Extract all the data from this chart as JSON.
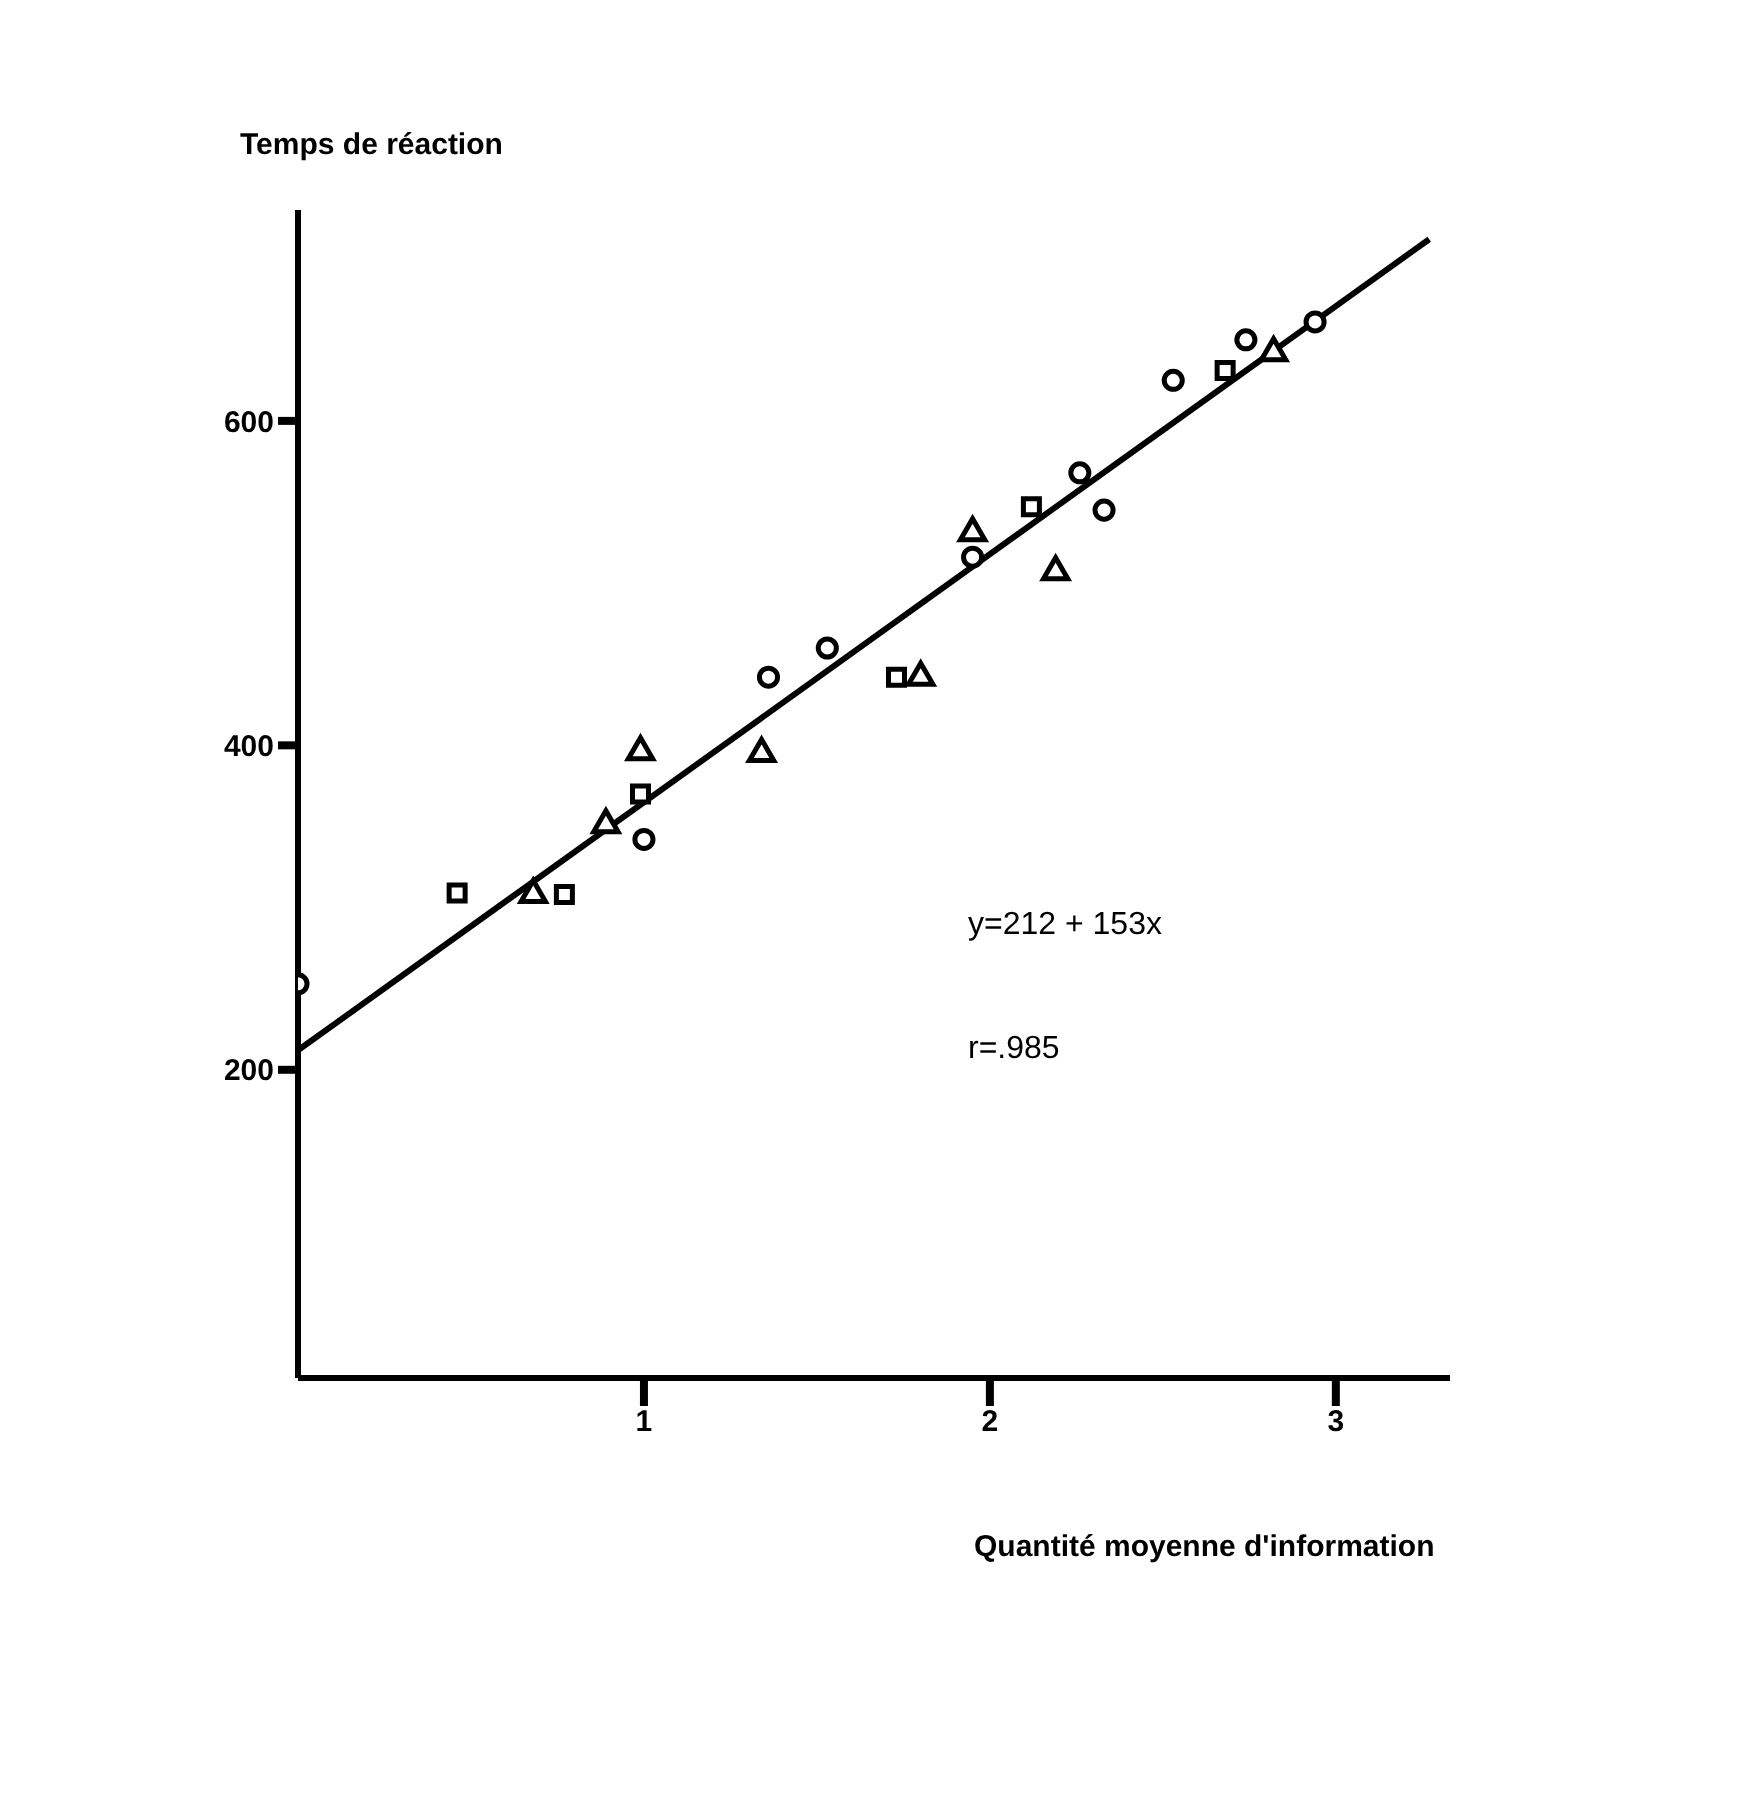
{
  "chart_data": {
    "type": "scatter",
    "xlabel": "Quantité moyenne d'information",
    "ylabel": "Temps de réaction",
    "annotations": [
      "y=212 + 153x",
      "r=.985"
    ],
    "xlim": [
      0,
      3.33
    ],
    "ylim": [
      10,
      730
    ],
    "xticks": [
      1,
      2,
      3
    ],
    "yticks": [
      200,
      400,
      600
    ],
    "grid": false,
    "legend": false,
    "series": [
      {
        "marker": "circle",
        "color": "#000000",
        "x": [
          0,
          1.0,
          1.36,
          1.53,
          1.95,
          2.26,
          2.33,
          2.53,
          2.74,
          2.94
        ],
        "values": [
          253,
          342,
          442,
          460,
          516,
          568,
          545,
          625,
          650,
          661
        ]
      },
      {
        "marker": "square",
        "color": "#000000",
        "x": [
          0.46,
          0.77,
          0.99,
          1.73,
          2.12,
          2.68
        ],
        "values": [
          309,
          308,
          370,
          442,
          547,
          631
        ]
      },
      {
        "marker": "triangle",
        "color": "#000000",
        "x": [
          0.68,
          0.89,
          0.99,
          1.34,
          1.8,
          1.95,
          2.19,
          2.82
        ],
        "values": [
          308,
          351,
          396,
          395,
          442,
          531,
          507,
          642
        ]
      },
      {
        "type": "line",
        "marker": "none",
        "color": "#000000",
        "x": [
          0,
          3.27
        ],
        "values": [
          212,
          712
        ]
      }
    ]
  }
}
